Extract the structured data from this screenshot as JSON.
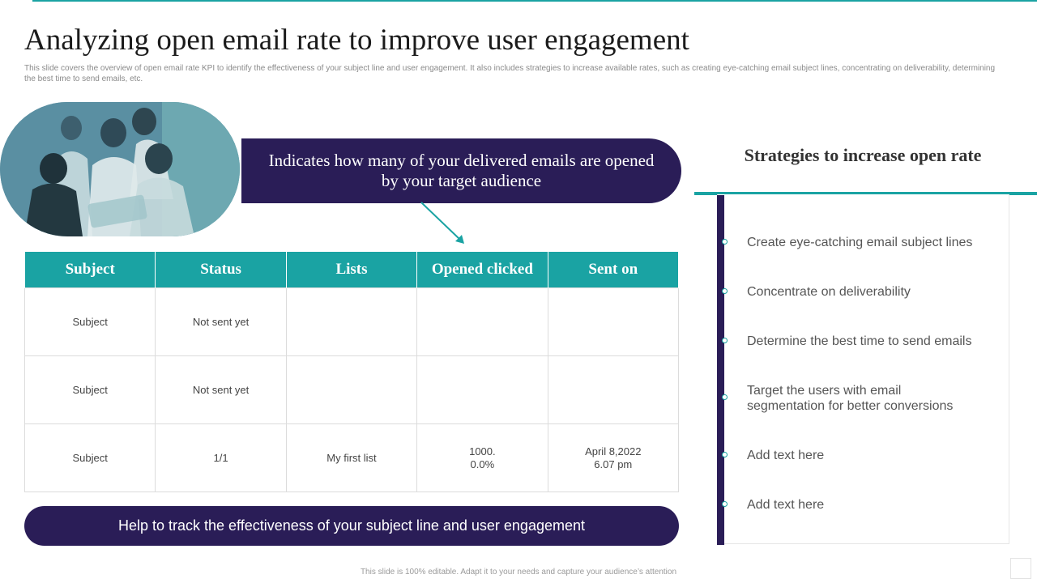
{
  "slide": {
    "title": "Analyzing open email rate to improve user engagement",
    "subtitle": "This slide covers the overview of open email rate KPI to identify the effectiveness of your subject line and user engagement. It also includes strategies to increase available rates, such as creating eye-catching email subject lines, concentrating on deliverability, determining the best time to send emails, etc.",
    "footer": "This slide is 100% editable. Adapt it to your needs and capture your audience’s attention"
  },
  "callout": {
    "text": "Indicates how many of your delivered emails are opened by your target audience"
  },
  "table": {
    "headers": [
      "Subject",
      "Status",
      "Lists",
      "Opened clicked",
      "Sent on"
    ],
    "rows": [
      [
        "Subject",
        "Not sent yet",
        "",
        "",
        ""
      ],
      [
        "Subject",
        "Not sent yet",
        "",
        "",
        ""
      ],
      [
        "Subject",
        "1/1",
        "My first list",
        "1000.\n0.0%",
        "April 8,2022\n6.07 pm"
      ]
    ]
  },
  "banner": {
    "text": "Help to track the effectiveness of your subject line and user engagement"
  },
  "strategies": {
    "title": "Strategies to increase open rate",
    "items": [
      "Create eye-catching email subject lines",
      "Concentrate on deliverability",
      "Determine the best time to send emails",
      "Target the users with email segmentation for better conversions",
      "Add text here",
      "Add text here"
    ]
  },
  "colors": {
    "teal": "#1aa3a3",
    "navy": "#2a1d57"
  }
}
